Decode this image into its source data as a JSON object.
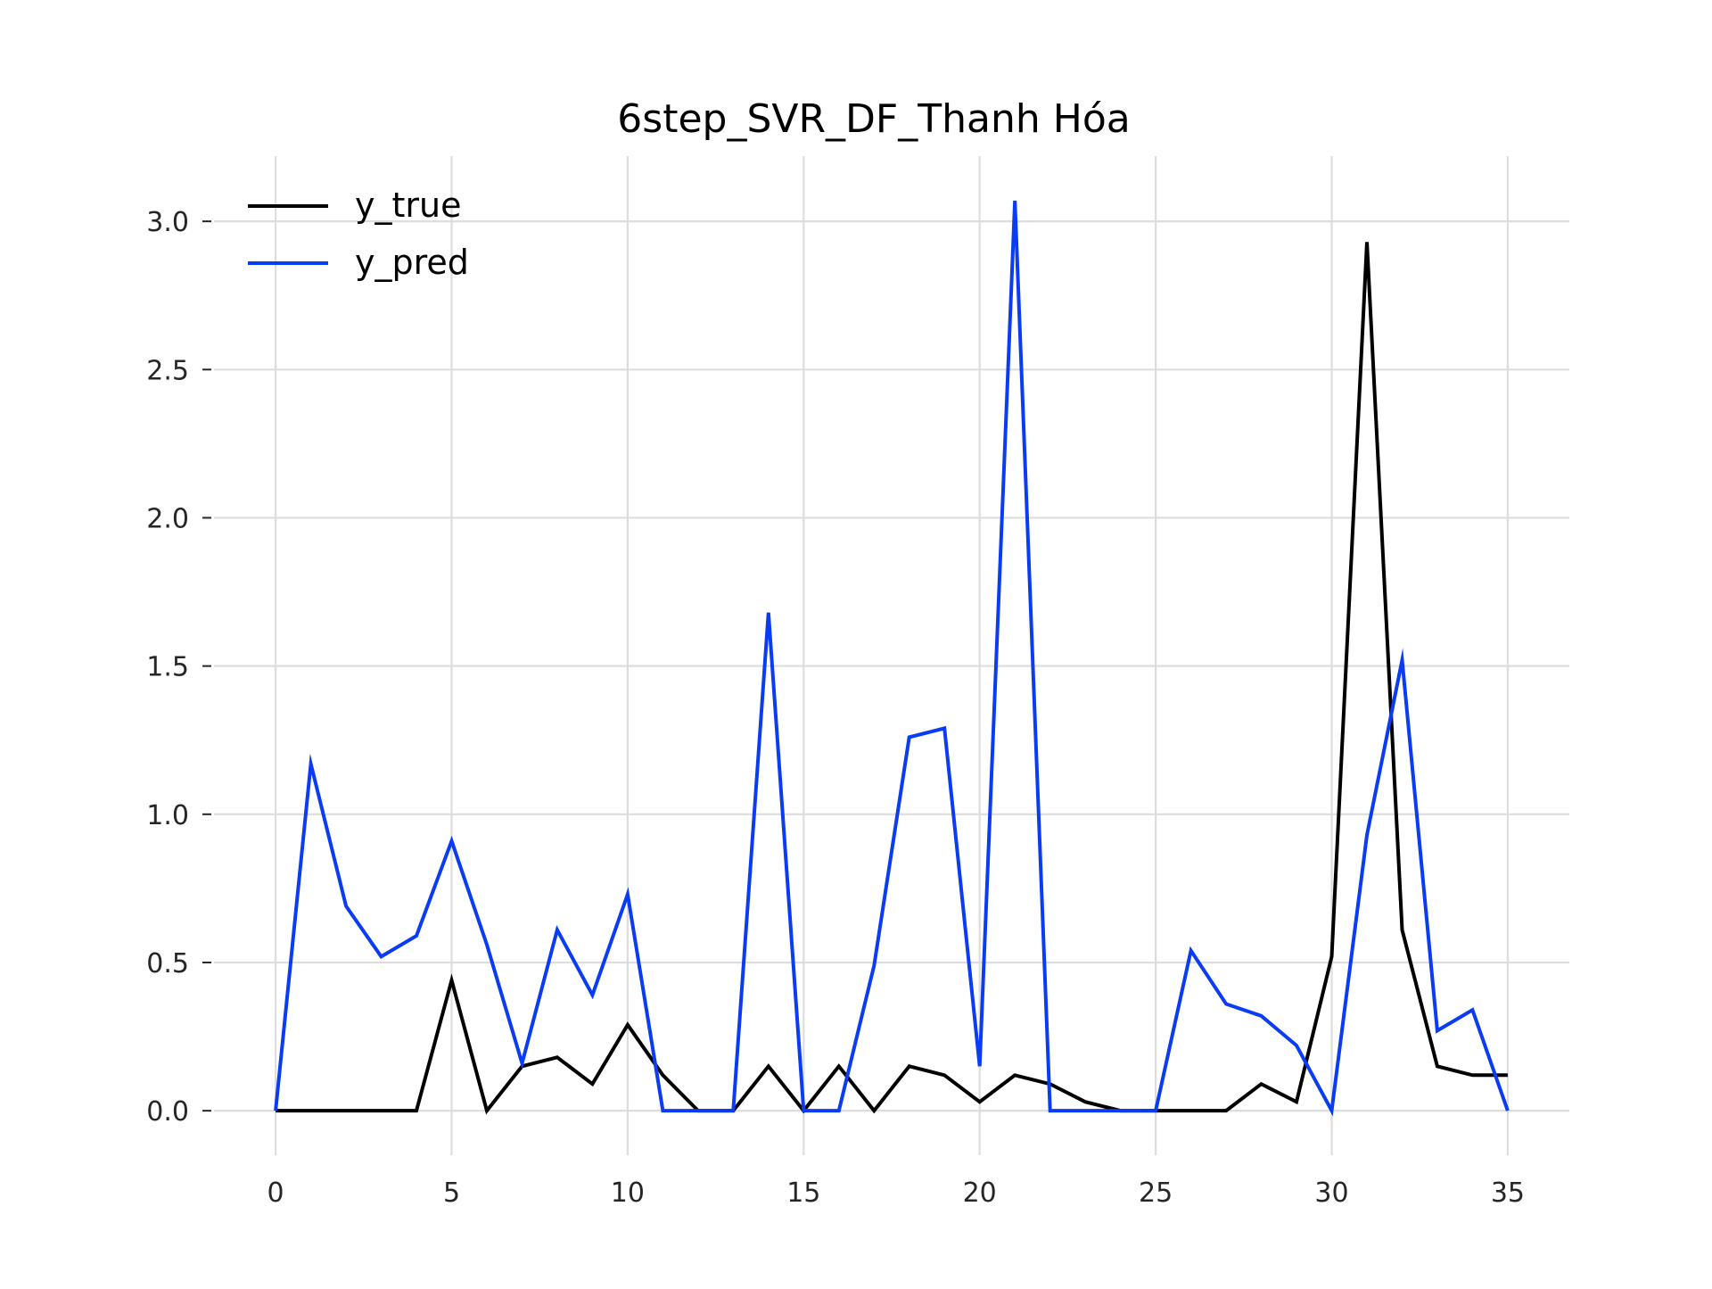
{
  "chart_data": {
    "type": "line",
    "title": "6step_SVR_DF_Thanh Hóa",
    "xlabel": "",
    "ylabel": "",
    "xlim": [
      -1.75,
      36.75
    ],
    "ylim": [
      -0.15,
      3.22
    ],
    "xticks": [
      0,
      5,
      10,
      15,
      20,
      25,
      30,
      35
    ],
    "xtick_labels": [
      "0",
      "5",
      "10",
      "15",
      "20",
      "25",
      "30",
      "35"
    ],
    "yticks": [
      0.0,
      0.5,
      1.0,
      1.5,
      2.0,
      2.5,
      3.0
    ],
    "ytick_labels": [
      "0.0",
      "0.5",
      "1.0",
      "1.5",
      "2.0",
      "2.5",
      "3.0"
    ],
    "grid": true,
    "legend_position": "top-left",
    "x": [
      0,
      1,
      2,
      3,
      4,
      5,
      6,
      7,
      8,
      9,
      10,
      11,
      12,
      13,
      14,
      15,
      16,
      17,
      18,
      19,
      20,
      21,
      22,
      23,
      24,
      25,
      26,
      27,
      28,
      29,
      30,
      31,
      32,
      33,
      34,
      35
    ],
    "series": [
      {
        "name": "y_true",
        "color": "#000000",
        "values": [
          0,
          0,
          0,
          0,
          0,
          0.44,
          0,
          0.15,
          0.18,
          0.09,
          0.29,
          0.12,
          0,
          0,
          0.15,
          0,
          0.15,
          0,
          0.15,
          0.12,
          0.03,
          0.12,
          0.09,
          0.03,
          0,
          0,
          0,
          0,
          0.09,
          0.03,
          0.52,
          2.93,
          0.61,
          0.15,
          0.12,
          0.12
        ]
      },
      {
        "name": "y_pred",
        "color": "#0a3cf5",
        "values": [
          0,
          1.17,
          0.69,
          0.52,
          0.59,
          0.91,
          0.56,
          0.16,
          0.61,
          0.39,
          0.73,
          0,
          0,
          0,
          1.68,
          0,
          0,
          0.49,
          1.26,
          1.29,
          0.15,
          3.07,
          0,
          0,
          0,
          0,
          0.54,
          0.36,
          0.32,
          0.22,
          0,
          0.93,
          1.52,
          0.27,
          0.34,
          0
        ]
      }
    ]
  }
}
